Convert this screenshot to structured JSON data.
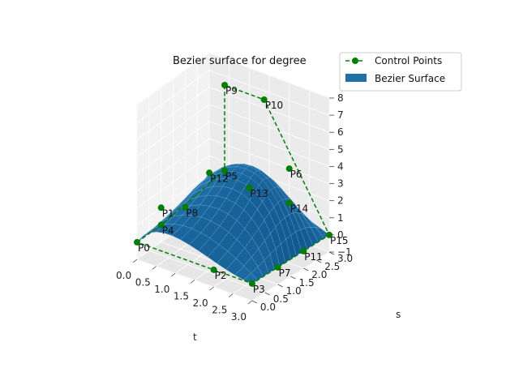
{
  "chart_data": {
    "type": "surface3d",
    "title": "Bezier surface for degree",
    "xlabel": "t",
    "ylabel": "s",
    "xlim": [
      0,
      3
    ],
    "ylim": [
      0,
      3
    ],
    "zlim": [
      -1,
      8
    ],
    "xticks": [
      "0.0",
      "0.5",
      "1.0",
      "1.5",
      "2.0",
      "2.5",
      "3.0"
    ],
    "yticks": [
      "0.0",
      "0.5",
      "1.0",
      "1.5",
      "2.0",
      "2.5",
      "3.0"
    ],
    "zticks": [
      "−1",
      "0",
      "1",
      "2",
      "3",
      "4",
      "5",
      "6",
      "7",
      "8"
    ],
    "grid": true,
    "legend_position": "top-right",
    "colors": {
      "surface": "#1f6fa8",
      "control": "#008000"
    },
    "legend": [
      {
        "key": "control",
        "label": "Control Points"
      },
      {
        "key": "surface",
        "label": "Bezier Surface"
      }
    ],
    "control_points": [
      {
        "label": "P0",
        "t": 0,
        "s": 0,
        "z": 0
      },
      {
        "label": "P1",
        "t": 0,
        "s": 1,
        "z": 1
      },
      {
        "label": "P2",
        "t": 2,
        "s": 0,
        "z": 0
      },
      {
        "label": "P3",
        "t": 3,
        "s": 0,
        "z": 0
      },
      {
        "label": "P4",
        "t": 0,
        "s": 1,
        "z": 0
      },
      {
        "label": "P5",
        "t": 1,
        "s": 2,
        "z": 3
      },
      {
        "label": "P6",
        "t": 2,
        "s": 3,
        "z": 3
      },
      {
        "label": "P7",
        "t": 3,
        "s": 1,
        "z": 0
      },
      {
        "label": "P8",
        "t": 0,
        "s": 2,
        "z": 0
      },
      {
        "label": "P9",
        "t": 1,
        "s": 2,
        "z": 8
      },
      {
        "label": "P10",
        "t": 2,
        "s": 2,
        "z": 8
      },
      {
        "label": "P11",
        "t": 3,
        "s": 2,
        "z": 0
      },
      {
        "label": "P12",
        "t": 0,
        "s": 3,
        "z": 1
      },
      {
        "label": "P13",
        "t": 1,
        "s": 3,
        "z": 1
      },
      {
        "label": "P14",
        "t": 2,
        "s": 3,
        "z": 1
      },
      {
        "label": "P15",
        "t": 3,
        "s": 3,
        "z": 0
      }
    ],
    "control_polygon_order": [
      "P0",
      "P4",
      "P5",
      "P9",
      "P10",
      "P15",
      "P11",
      "P7",
      "P3",
      "P2",
      "P0"
    ]
  }
}
